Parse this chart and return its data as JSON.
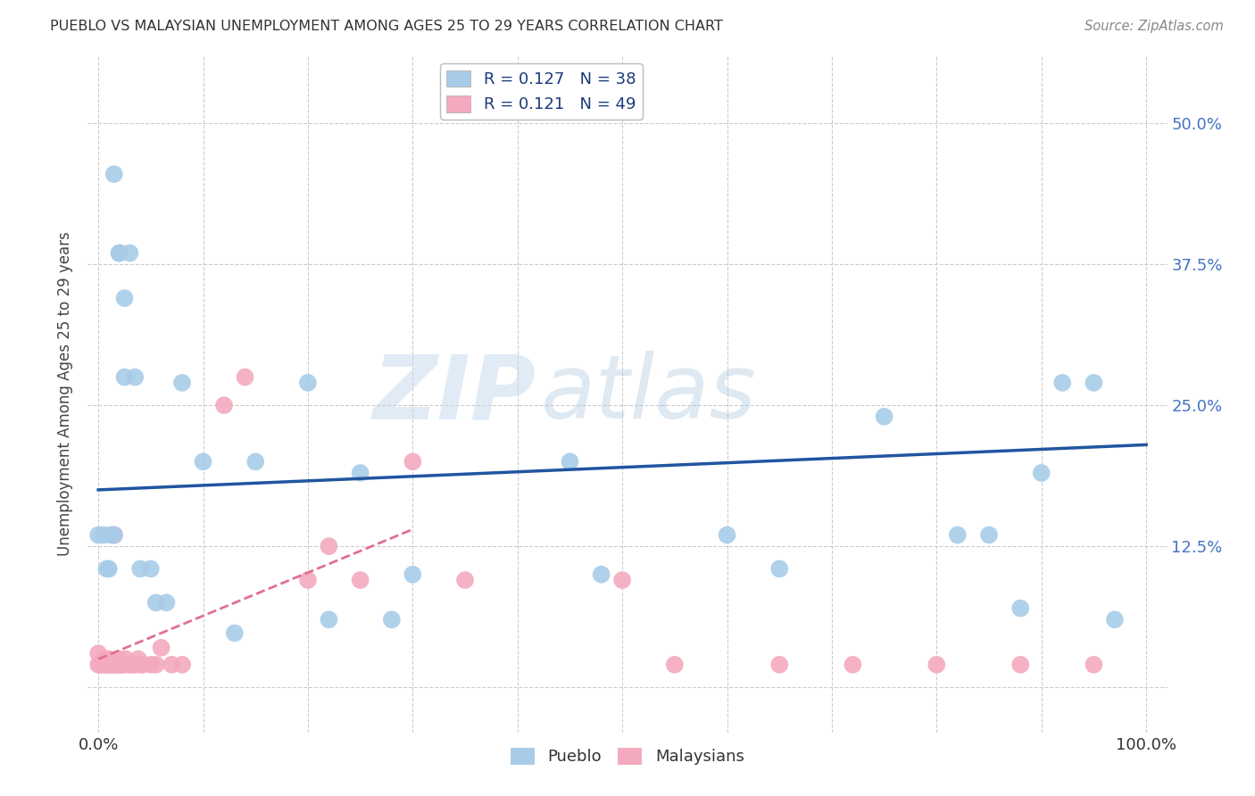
{
  "title": "PUEBLO VS MALAYSIAN UNEMPLOYMENT AMONG AGES 25 TO 29 YEARS CORRELATION CHART",
  "source": "Source: ZipAtlas.com",
  "ylabel": "Unemployment Among Ages 25 to 29 years",
  "xlim": [
    -0.01,
    1.02
  ],
  "ylim": [
    -0.04,
    0.56
  ],
  "yticks": [
    0.0,
    0.125,
    0.25,
    0.375,
    0.5
  ],
  "pueblo_R": "0.127",
  "pueblo_N": "38",
  "malaysian_R": "0.121",
  "malaysian_N": "49",
  "pueblo_color": "#A8CCE8",
  "malaysian_color": "#F4AABE",
  "pueblo_line_color": "#2055A0",
  "malaysian_line_color": "#E07090",
  "background_color": "#FFFFFF",
  "grid_color": "#CCCCCC",
  "pueblo_x": [
    0.015,
    0.02,
    0.02,
    0.025,
    0.025,
    0.03,
    0.035,
    0.04,
    0.05,
    0.055,
    0.065,
    0.08,
    0.1,
    0.13,
    0.15,
    0.2,
    0.22,
    0.25,
    0.28,
    0.3,
    0.45,
    0.48,
    0.6,
    0.65,
    0.75,
    0.82,
    0.85,
    0.88,
    0.9,
    0.92,
    0.95,
    0.97,
    0.0,
    0.005,
    0.008,
    0.01,
    0.012,
    0.015
  ],
  "pueblo_y": [
    0.455,
    0.385,
    0.385,
    0.345,
    0.275,
    0.385,
    0.275,
    0.105,
    0.105,
    0.075,
    0.075,
    0.27,
    0.2,
    0.048,
    0.2,
    0.27,
    0.06,
    0.19,
    0.06,
    0.1,
    0.2,
    0.1,
    0.135,
    0.105,
    0.24,
    0.135,
    0.135,
    0.07,
    0.19,
    0.27,
    0.27,
    0.06,
    0.135,
    0.135,
    0.105,
    0.105,
    0.135,
    0.135
  ],
  "malaysian_x": [
    0.0,
    0.0,
    0.002,
    0.003,
    0.005,
    0.006,
    0.007,
    0.008,
    0.009,
    0.01,
    0.01,
    0.012,
    0.013,
    0.015,
    0.015,
    0.016,
    0.018,
    0.019,
    0.02,
    0.02,
    0.022,
    0.023,
    0.025,
    0.026,
    0.03,
    0.032,
    0.035,
    0.038,
    0.04,
    0.042,
    0.05,
    0.055,
    0.06,
    0.07,
    0.08,
    0.12,
    0.14,
    0.2,
    0.22,
    0.25,
    0.3,
    0.35,
    0.5,
    0.55,
    0.65,
    0.72,
    0.8,
    0.88,
    0.95
  ],
  "malaysian_y": [
    0.03,
    0.02,
    0.02,
    0.02,
    0.025,
    0.02,
    0.025,
    0.02,
    0.02,
    0.025,
    0.02,
    0.02,
    0.02,
    0.135,
    0.135,
    0.02,
    0.02,
    0.02,
    0.02,
    0.025,
    0.02,
    0.02,
    0.02,
    0.025,
    0.02,
    0.02,
    0.02,
    0.025,
    0.02,
    0.02,
    0.02,
    0.02,
    0.035,
    0.02,
    0.02,
    0.25,
    0.275,
    0.095,
    0.125,
    0.095,
    0.2,
    0.095,
    0.095,
    0.02,
    0.02,
    0.02,
    0.02,
    0.02,
    0.02
  ],
  "pueblo_trend_x": [
    0.0,
    1.0
  ],
  "pueblo_trend_y": [
    0.175,
    0.215
  ],
  "malaysian_trend_x": [
    0.0,
    0.3
  ],
  "malaysian_trend_y": [
    0.025,
    0.14
  ],
  "watermark_zip": "ZIP",
  "watermark_atlas": "atlas",
  "legend_label_1": "Pueblo",
  "legend_label_2": "Malaysians"
}
